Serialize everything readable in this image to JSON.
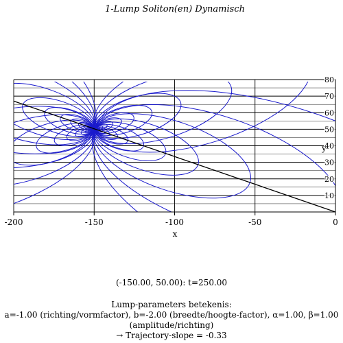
{
  "chart_data": {
    "type": "line",
    "title": "1-Lump Soliton(en) Dynamisch",
    "xlabel": "x",
    "ylabel": "y",
    "xlim": [
      -200,
      0
    ],
    "ylim": [
      0,
      80
    ],
    "x_ticks": [
      -200,
      -150,
      -100,
      -50,
      0
    ],
    "y_ticks": [
      10,
      20,
      30,
      40,
      50,
      60,
      70,
      80
    ],
    "grid": true,
    "series": [
      {
        "kind": "contours",
        "color": "#1a1acc",
        "center": [
          -150,
          50
        ],
        "params": {
          "a": -1.0,
          "b": -2.0,
          "alpha": 1.0,
          "beta": 1.0
        }
      },
      {
        "kind": "trajectory",
        "color": "#000000",
        "x": [
          -200,
          0
        ],
        "y": [
          67,
          0
        ]
      }
    ]
  },
  "readout": "(-150.00, 50.00): t=250.00",
  "legend_text": {
    "heading": "Lump-parameters betekenis:",
    "line1": "a=-1.00 (richting/vormfactor), b=-2.00 (breedte/hoogte-factor), α=1.00, β=1.00",
    "line2": "(amplitude/richting)",
    "line3": "→ Trajectory-slope = -0.33"
  }
}
